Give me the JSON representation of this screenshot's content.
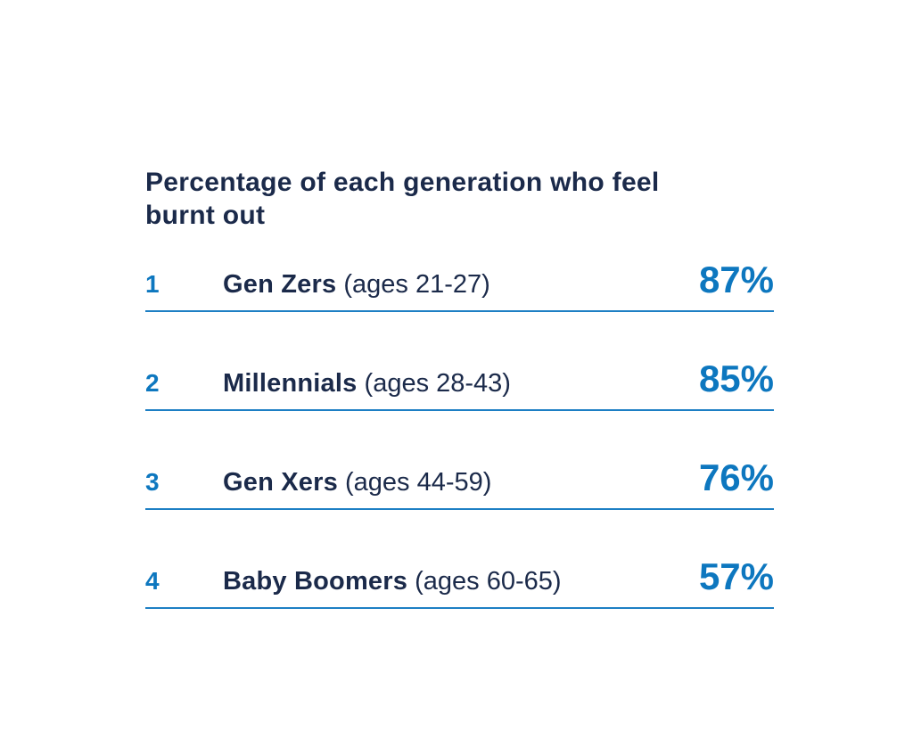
{
  "colors": {
    "background": "#ffffff",
    "navy_text": "#1b2a4a",
    "accent_blue": "#0d77bf",
    "divider_blue": "#1d7fc4"
  },
  "title": "Percentage of each generation who feel burnt out",
  "rows": [
    {
      "rank": "1",
      "name": "Gen Zers",
      "ages": "(ages 21-27)",
      "value": "87%"
    },
    {
      "rank": "2",
      "name": "Millennials",
      "ages": "(ages 28-43)",
      "value": "85%"
    },
    {
      "rank": "3",
      "name": "Gen Xers",
      "ages": "(ages 44-59)",
      "value": "76%"
    },
    {
      "rank": "4",
      "name": "Baby Boomers",
      "ages": "(ages 60-65)",
      "value": "57%"
    }
  ],
  "chart_data": {
    "type": "table",
    "title": "Percentage of each generation who feel burnt out",
    "categories": [
      "Gen Zers (ages 21-27)",
      "Millennials (ages 28-43)",
      "Gen Xers (ages 44-59)",
      "Baby Boomers (ages 60-65)"
    ],
    "values": [
      87,
      85,
      76,
      57
    ],
    "ranks": [
      1,
      2,
      3,
      4
    ],
    "value_suffix": "%",
    "xlabel": "",
    "ylabel": "",
    "legend": "none",
    "grid": "off",
    "layout": "ranked-list with blue underline dividers, values right-aligned"
  }
}
